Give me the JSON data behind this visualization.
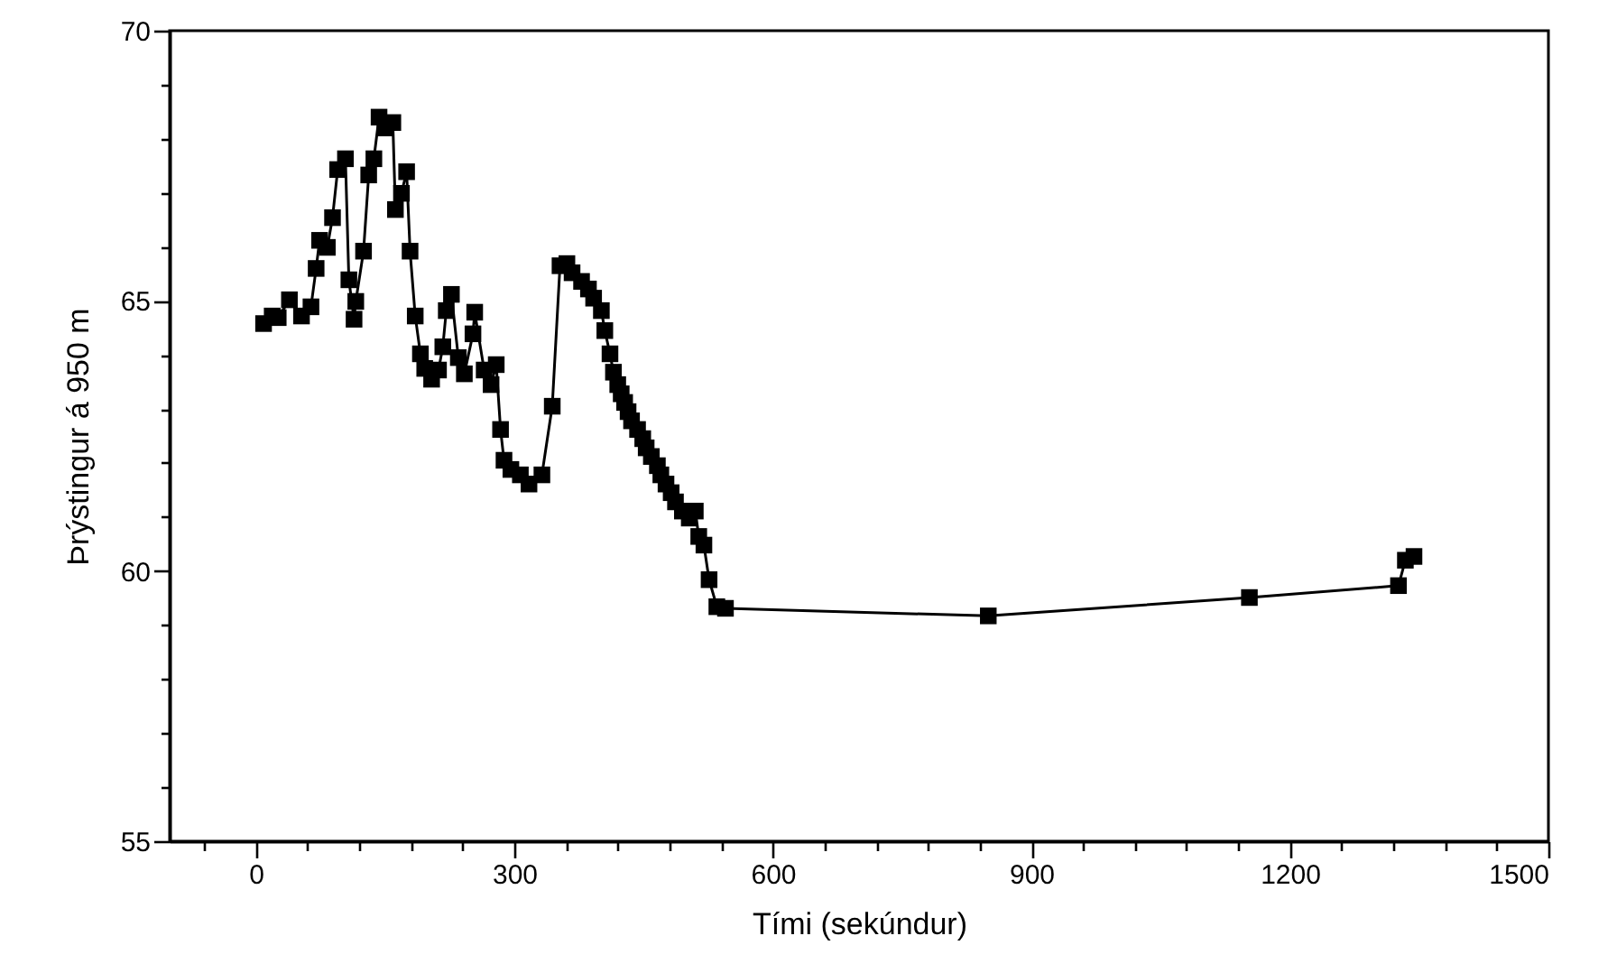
{
  "chart_data": {
    "type": "line",
    "xlabel": "Tími (sekúndur)",
    "ylabel": "Þrýstingur á 950 m",
    "marker": "square",
    "xlim": [
      -100,
      1500
    ],
    "xticks": [
      {
        "value": -60,
        "label": null
      },
      0,
      {
        "value": 60,
        "label": null
      },
      {
        "value": 120,
        "label": null
      },
      {
        "value": 180,
        "label": null
      },
      {
        "value": 240,
        "label": null
      },
      300,
      {
        "value": 360,
        "label": null
      },
      {
        "value": 420,
        "label": null
      },
      {
        "value": 480,
        "label": null
      },
      {
        "value": 540,
        "label": null
      },
      600,
      {
        "value": 660,
        "label": null
      },
      {
        "value": 720,
        "label": null
      },
      {
        "value": 780,
        "label": null
      },
      {
        "value": 840,
        "label": null
      },
      900,
      {
        "value": 960,
        "label": null
      },
      {
        "value": 1020,
        "label": null
      },
      {
        "value": 1080,
        "label": null
      },
      {
        "value": 1140,
        "label": null
      },
      1200,
      {
        "value": 1260,
        "label": null
      },
      {
        "value": 1320,
        "label": null
      },
      {
        "value": 1380,
        "label": null
      },
      {
        "value": 1440,
        "label": null
      },
      1500
    ],
    "ylim": [
      55,
      70
    ],
    "yticks": [
      55,
      {
        "value": 56,
        "label": null
      },
      {
        "value": 57,
        "label": null
      },
      {
        "value": 58,
        "label": null
      },
      {
        "value": 59,
        "label": null
      },
      60,
      {
        "value": 61,
        "label": null
      },
      {
        "value": 62,
        "label": null
      },
      {
        "value": 63,
        "label": null
      },
      {
        "value": 64,
        "label": null
      },
      65,
      {
        "value": 66,
        "label": null
      },
      {
        "value": 67,
        "label": null
      },
      {
        "value": 68,
        "label": null
      },
      {
        "value": 69,
        "label": null
      },
      70
    ],
    "series": [
      {
        "color": "#000000",
        "x": [
          9,
          19,
          26,
          39,
          53,
          64,
          70,
          74,
          83,
          89,
          95,
          104,
          108,
          114,
          116,
          125,
          131,
          137,
          143,
          150,
          159,
          162,
          169,
          175,
          179,
          185,
          191,
          196,
          204,
          212,
          217,
          221,
          227,
          235,
          242,
          252,
          254,
          265,
          273,
          279,
          284,
          288,
          296,
          307,
          317,
          332,
          344,
          353,
          361,
          367,
          378,
          386,
          392,
          401,
          405,
          411,
          415,
          420,
          424,
          428,
          432,
          436,
          443,
          449,
          453,
          459,
          466,
          470,
          476,
          482,
          487,
          495,
          503,
          510,
          514,
          520,
          526,
          535,
          545,
          850,
          1153,
          1326,
          1334,
          1344
        ],
        "values": [
          64.58,
          64.72,
          64.69,
          65.02,
          64.72,
          64.89,
          65.6,
          66.12,
          65.99,
          66.54,
          67.43,
          67.63,
          65.39,
          64.66,
          64.99,
          65.92,
          67.33,
          67.63,
          68.4,
          68.2,
          68.3,
          66.69,
          66.99,
          67.39,
          65.92,
          64.72,
          64.02,
          63.75,
          63.55,
          63.72,
          64.15,
          64.82,
          65.12,
          63.95,
          63.65,
          64.39,
          64.79,
          63.72,
          63.45,
          63.82,
          62.62,
          62.05,
          61.88,
          61.78,
          61.61,
          61.78,
          63.05,
          65.65,
          65.69,
          65.52,
          65.36,
          65.22,
          65.05,
          64.82,
          64.45,
          64.02,
          63.68,
          63.45,
          63.28,
          63.12,
          62.95,
          62.78,
          62.62,
          62.45,
          62.28,
          62.12,
          61.95,
          61.78,
          61.61,
          61.45,
          61.28,
          61.11,
          60.98,
          61.11,
          60.64,
          60.48,
          59.84,
          59.34,
          59.31,
          59.17,
          59.51,
          59.73,
          60.2,
          60.27
        ]
      }
    ]
  }
}
